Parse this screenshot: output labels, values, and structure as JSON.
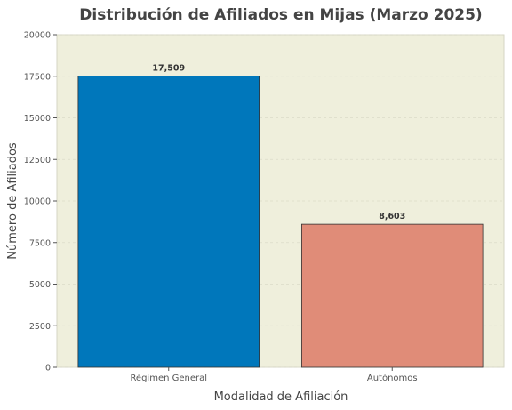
{
  "chart_data": {
    "type": "bar",
    "title": "Distribución de Afiliados en Mijas (Marzo 2025)",
    "xlabel": "Modalidad de Afiliación",
    "ylabel": "Número de Afiliados",
    "categories": [
      "Régimen General",
      "Autónomos"
    ],
    "values": [
      17509,
      8603
    ],
    "value_labels": [
      "17,509",
      "8,603"
    ],
    "colors": [
      "#0077bb",
      "#e08c78"
    ],
    "ylim": [
      0,
      20000
    ],
    "yticks": [
      0,
      2500,
      5000,
      7500,
      10000,
      12500,
      15000,
      17500,
      20000
    ],
    "ytick_labels": [
      "0",
      "2500",
      "5000",
      "7500",
      "10000",
      "12500",
      "15000",
      "17500",
      "20000"
    ],
    "grid": true,
    "plot_background": "#efefdc"
  }
}
